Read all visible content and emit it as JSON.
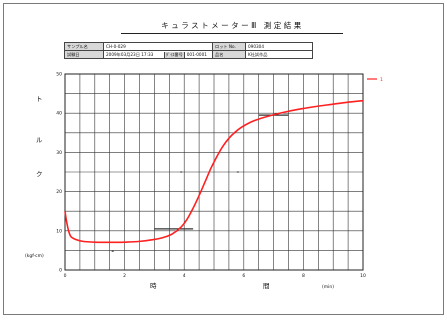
{
  "report": {
    "title": "キュラストメーターⅢ 測定結果"
  },
  "info": {
    "sample_label": "サンプル名",
    "sample_value": "CH-0-029",
    "lot_label": "ロット No.",
    "lot_value": "090304",
    "date_label": "試験日",
    "date_value": "2009年03月23日 17:33",
    "mold_label": "ﾀﾞｲｽ番号",
    "mold_value": "001-0001",
    "product_label": "品名",
    "product_value": "K社試作品"
  },
  "chart_data": {
    "type": "line",
    "title": "",
    "xlabel_left": "時",
    "xlabel_right": "間",
    "xunit": "(min)",
    "ylabel_chars": [
      "ト",
      "ル",
      "ク"
    ],
    "yunit": "(kgf-cm)",
    "xlim": [
      0,
      10
    ],
    "ylim": [
      0,
      50
    ],
    "x_tick_labels": [
      "0",
      "2",
      "4",
      "6",
      "8",
      "10"
    ],
    "y_tick_labels": [
      "0",
      "10",
      "20",
      "30",
      "40",
      "50"
    ],
    "grid": true,
    "legend_position": "right",
    "series": [
      {
        "name": "1",
        "color": "#ff2020",
        "x": [
          0,
          0.05,
          0.12,
          0.2,
          0.35,
          0.6,
          1.0,
          1.5,
          2.0,
          2.5,
          3.0,
          3.3,
          3.6,
          3.9,
          4.1,
          4.3,
          4.5,
          4.7,
          4.9,
          5.1,
          5.3,
          5.5,
          5.7,
          5.9,
          6.2,
          6.5,
          7.0,
          7.5,
          8.0,
          8.5,
          9.0,
          9.5,
          10.0
        ],
        "y": [
          15.0,
          12.5,
          10.0,
          8.5,
          7.8,
          7.3,
          7.1,
          7.05,
          7.1,
          7.3,
          7.8,
          8.3,
          9.2,
          11.0,
          13.0,
          15.8,
          19.0,
          22.5,
          26.0,
          29.0,
          31.6,
          33.6,
          35.1,
          36.3,
          37.6,
          38.5,
          39.6,
          40.5,
          41.2,
          41.8,
          42.3,
          42.8,
          43.2
        ]
      }
    ],
    "marks": [
      {
        "type": "hline",
        "x1": 3.0,
        "x2": 4.3,
        "y": 10.5
      },
      {
        "type": "hline",
        "x1": 6.5,
        "x2": 7.5,
        "y": 39.5
      },
      {
        "type": "tick",
        "x": 3.9,
        "y": 25.0
      },
      {
        "type": "tick",
        "x": 5.8,
        "y": 25.0
      },
      {
        "type": "tick",
        "x": 1.6,
        "y": 4.8
      }
    ]
  }
}
